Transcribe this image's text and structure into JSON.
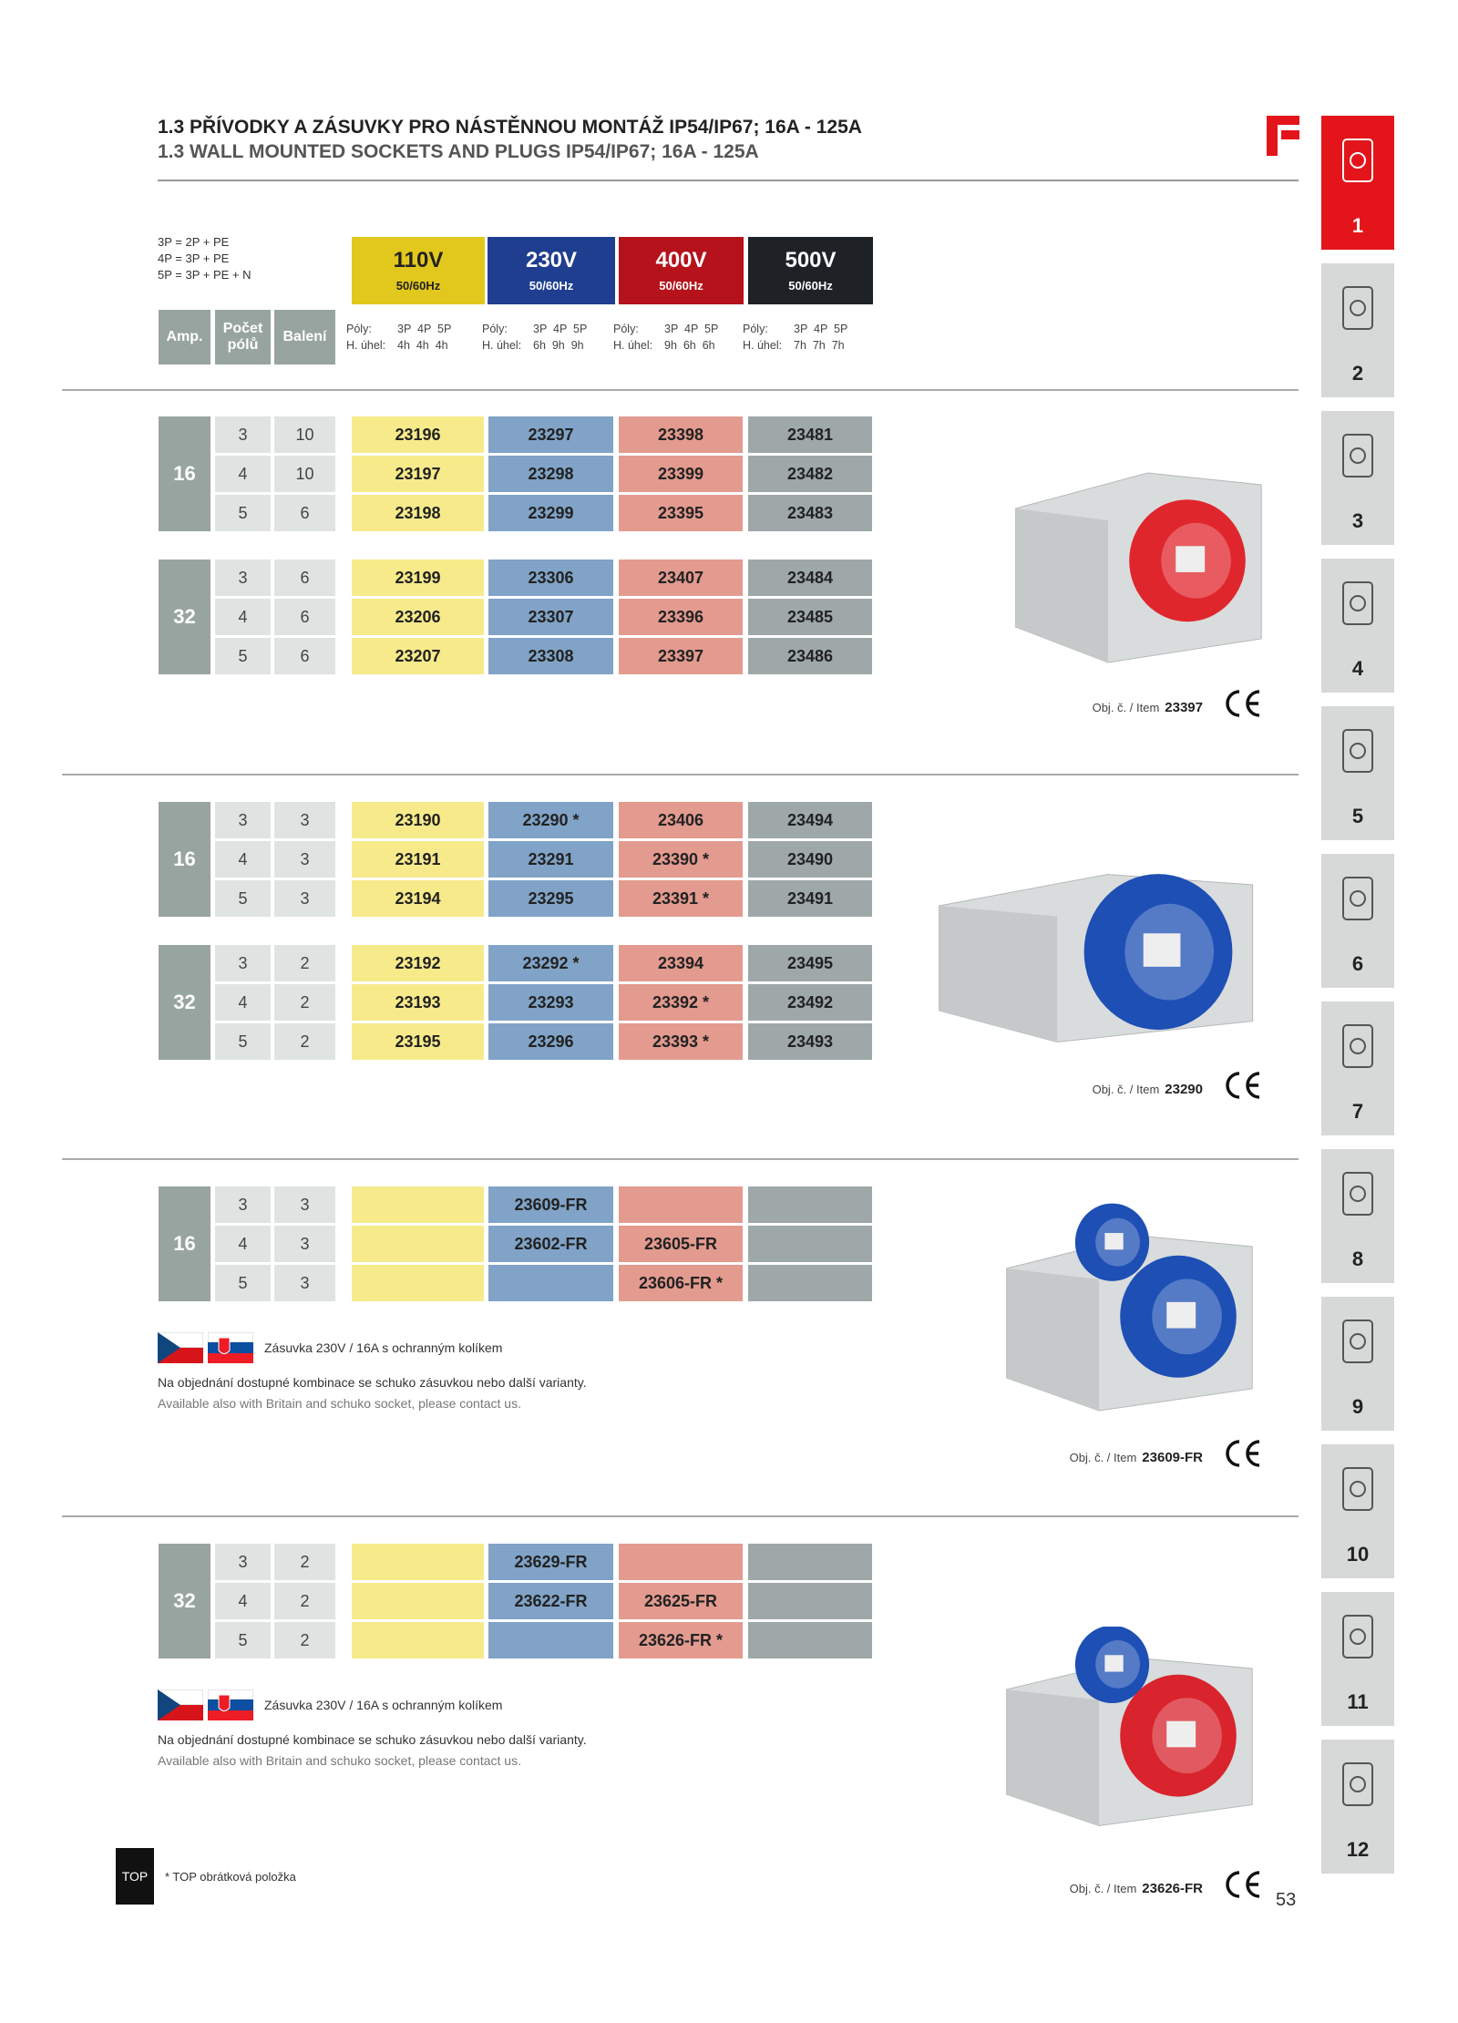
{
  "header": {
    "title_cz": "1.3 PŘÍVODKY A ZÁSUVKY PRO NÁSTĚNNOU MONTÁŽ IP54/IP67; 16A - 125A",
    "title_en": "1.3  WALL MOUNTED SOCKETS AND PLUGS IP54/IP67; 16A - 125A"
  },
  "legend": [
    "3P = 2P + PE",
    "4P = 3P + PE",
    "5P = 3P + PE + N"
  ],
  "columns": {
    "amp": "Amp.",
    "poles": "Počet pólů",
    "pack": "Balení"
  },
  "voltages": [
    {
      "label": "110V",
      "freq": "50/60Hz",
      "color": "#e2c81c",
      "cell_color": "#f6ea8b",
      "text_color": "#222",
      "poles_label": "Póly:",
      "poles": "3P  4P  5P",
      "angle_label": "H. úhel:",
      "angles": "4h  4h  4h"
    },
    {
      "label": "230V",
      "freq": "50/60Hz",
      "color": "#1f3e8f",
      "cell_color": "#80a3c7",
      "text_color": "#fff",
      "poles_label": "Póly:",
      "poles": "3P  4P  5P",
      "angle_label": "H. úhel:",
      "angles": "6h  9h  9h"
    },
    {
      "label": "400V",
      "freq": "50/60Hz",
      "color": "#b5121b",
      "cell_color": "#e39a8f",
      "text_color": "#fff",
      "poles_label": "Póly:",
      "poles": "3P  4P  5P",
      "angle_label": "H. úhel:",
      "angles": "9h  6h  6h"
    },
    {
      "label": "500V",
      "freq": "50/60Hz",
      "color": "#1e2126",
      "cell_color": "#9ea8a9",
      "text_color": "#fff",
      "poles_label": "Póly:",
      "poles": "3P  4P  5P",
      "angle_label": "H. úhel:",
      "angles": "7h  7h  7h"
    }
  ],
  "sections": [
    {
      "groups": [
        {
          "amp": "16",
          "rows": [
            {
              "poles": "3",
              "pack": "10",
              "items": [
                "23196",
                "23297",
                "23398",
                "23481"
              ]
            },
            {
              "poles": "4",
              "pack": "10",
              "items": [
                "23197",
                "23298",
                "23399",
                "23482"
              ]
            },
            {
              "poles": "5",
              "pack": "6",
              "items": [
                "23198",
                "23299",
                "23395",
                "23483"
              ]
            }
          ]
        },
        {
          "amp": "32",
          "rows": [
            {
              "poles": "3",
              "pack": "6",
              "items": [
                "23199",
                "23306",
                "23407",
                "23484"
              ]
            },
            {
              "poles": "4",
              "pack": "6",
              "items": [
                "23206",
                "23307",
                "23396",
                "23485"
              ]
            },
            {
              "poles": "5",
              "pack": "6",
              "items": [
                "23207",
                "23308",
                "23397",
                "23486"
              ]
            }
          ]
        }
      ],
      "item_label": "Obj. č. / Item",
      "item": "23397"
    },
    {
      "groups": [
        {
          "amp": "16",
          "rows": [
            {
              "poles": "3",
              "pack": "3",
              "items": [
                "23190",
                "23290 *",
                "23406",
                "23494"
              ]
            },
            {
              "poles": "4",
              "pack": "3",
              "items": [
                "23191",
                "23291",
                "23390 *",
                "23490"
              ]
            },
            {
              "poles": "5",
              "pack": "3",
              "items": [
                "23194",
                "23295",
                "23391 *",
                "23491"
              ]
            }
          ]
        },
        {
          "amp": "32",
          "rows": [
            {
              "poles": "3",
              "pack": "2",
              "items": [
                "23192",
                "23292 *",
                "23394",
                "23495"
              ]
            },
            {
              "poles": "4",
              "pack": "2",
              "items": [
                "23193",
                "23293",
                "23392 *",
                "23492"
              ]
            },
            {
              "poles": "5",
              "pack": "2",
              "items": [
                "23195",
                "23296",
                "23393 *",
                "23493"
              ]
            }
          ]
        }
      ],
      "item_label": "Obj. č. / Item",
      "item": "23290"
    },
    {
      "groups": [
        {
          "amp": "16",
          "rows": [
            {
              "poles": "3",
              "pack": "3",
              "items": [
                null,
                "23609-FR",
                null,
                null
              ]
            },
            {
              "poles": "4",
              "pack": "3",
              "items": [
                null,
                "23602-FR",
                "23605-FR",
                null
              ]
            },
            {
              "poles": "5",
              "pack": "3",
              "items": [
                null,
                null,
                "23606-FR *",
                null
              ]
            }
          ]
        }
      ],
      "note": {
        "flags_caption": "Zásuvka 230V / 16A s ochranným kolíkem",
        "cz": "Na objednání dostupné kombinace se schuko zásuvkou nebo další varianty.",
        "en": "Available also with Britain and schuko socket, please contact us."
      },
      "item_label": "Obj. č. / Item",
      "item": "23609-FR"
    },
    {
      "groups": [
        {
          "amp": "32",
          "rows": [
            {
              "poles": "3",
              "pack": "2",
              "items": [
                null,
                "23629-FR",
                null,
                null
              ]
            },
            {
              "poles": "4",
              "pack": "2",
              "items": [
                null,
                "23622-FR",
                "23625-FR",
                null
              ]
            },
            {
              "poles": "5",
              "pack": "2",
              "items": [
                null,
                null,
                "23626-FR *",
                null
              ]
            }
          ]
        }
      ],
      "note": {
        "flags_caption": "Zásuvka 230V / 16A s ochranným kolíkem",
        "cz": "Na objednání dostupné kombinace se schuko zásuvkou nebo další varianty.",
        "en": "Available also with Britain and schuko socket, please contact us."
      },
      "item_label": "Obj. č. / Item",
      "item": "23626-FR"
    }
  ],
  "tabs": [
    "1",
    "2",
    "3",
    "4",
    "5",
    "6",
    "7",
    "8",
    "9",
    "10",
    "11",
    "12"
  ],
  "footer": {
    "top": "TOP",
    "note": "* TOP obrátková položka",
    "page": "53"
  }
}
